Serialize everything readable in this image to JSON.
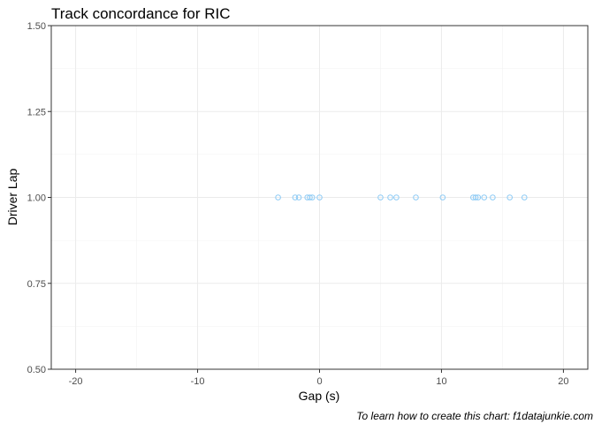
{
  "chart_data": {
    "type": "scatter",
    "title": "Track concordance for  RIC",
    "xlabel": "Gap (s)",
    "ylabel": "Driver Lap",
    "caption": "To learn how to create this chart: f1datajunkie.com",
    "xlim": [
      -22,
      22
    ],
    "ylim": [
      0.5,
      1.5
    ],
    "x_ticks": [
      -20,
      -10,
      0,
      10,
      20
    ],
    "x_tick_labels": [
      "-20",
      "-10",
      "0",
      "10",
      "20"
    ],
    "y_ticks": [
      0.5,
      0.75,
      1.0,
      1.25,
      1.5
    ],
    "y_tick_labels": [
      "0.50",
      "0.75",
      "1.00",
      "1.25",
      "1.50"
    ],
    "grid": true,
    "point_color": "#8ecbf5",
    "series": [
      {
        "points": [
          {
            "x": -3.4,
            "y": 1.0
          },
          {
            "x": -2.0,
            "y": 1.0
          },
          {
            "x": -1.7,
            "y": 1.0
          },
          {
            "x": -1.0,
            "y": 1.0
          },
          {
            "x": -0.8,
            "y": 1.0
          },
          {
            "x": -0.6,
            "y": 1.0
          },
          {
            "x": 0.0,
            "y": 1.0
          },
          {
            "x": 5.0,
            "y": 1.0
          },
          {
            "x": 5.8,
            "y": 1.0
          },
          {
            "x": 6.3,
            "y": 1.0
          },
          {
            "x": 7.9,
            "y": 1.0
          },
          {
            "x": 10.1,
            "y": 1.0
          },
          {
            "x": 12.6,
            "y": 1.0
          },
          {
            "x": 12.8,
            "y": 1.0
          },
          {
            "x": 13.0,
            "y": 1.0
          },
          {
            "x": 13.5,
            "y": 1.0
          },
          {
            "x": 14.2,
            "y": 1.0
          },
          {
            "x": 15.6,
            "y": 1.0
          },
          {
            "x": 16.8,
            "y": 1.0
          }
        ]
      }
    ]
  }
}
